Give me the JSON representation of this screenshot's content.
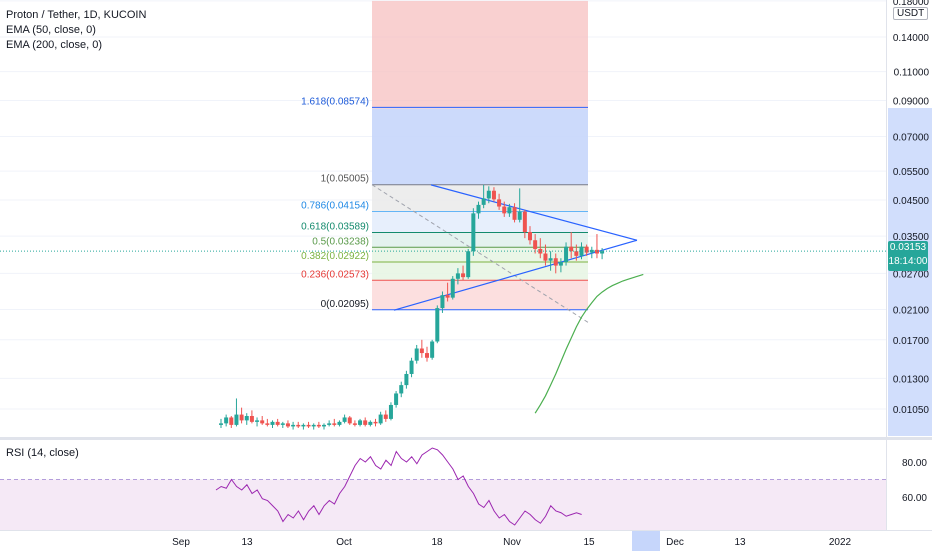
{
  "legend": {
    "title": "Proton / Tether, 1D, KUCOIN",
    "ema50": "EMA (50, close, 0)",
    "ema200": "EMA (200, close, 0)",
    "rsi": "RSI (14, close)"
  },
  "currency_badge": "USDT",
  "last_price": {
    "value": "0.03153",
    "countdown": "18:14:00"
  },
  "colors": {
    "up": "#26a69a",
    "down": "#ef5350",
    "triangle": "#2962ff",
    "ema": "#4caf50",
    "rsi": "#9c27b0",
    "risk_zone": "#f7c0c0",
    "target_zone": "#c6d6fb"
  },
  "chart_data": [
    {
      "type": "candlestick",
      "title": "Proton / Tether, 1D, KUCOIN",
      "x_ticks": [
        "Sep",
        "13",
        "Oct",
        "18",
        "Nov",
        "15",
        "Dec",
        "13",
        "2022"
      ],
      "y_ticks": [
        0.18,
        0.14,
        0.11,
        0.09,
        0.07,
        0.055,
        0.045,
        0.035,
        0.027,
        0.021,
        0.017,
        0.013,
        0.0105
      ],
      "y_tick_labels": [
        "0.18000",
        "0.14000",
        "0.11000",
        "0.09000",
        "0.07000",
        "0.05500",
        "0.04500",
        "0.03500",
        "0.02700",
        "0.02100",
        "0.01700",
        "0.01300",
        "0.01050"
      ],
      "y_scale": "log",
      "ohlc": [
        [
          0.0094,
          0.0098,
          0.0092,
          0.0095
        ],
        [
          0.0095,
          0.0101,
          0.0093,
          0.0099
        ],
        [
          0.0099,
          0.01,
          0.0092,
          0.0094
        ],
        [
          0.0094,
          0.0113,
          0.0093,
          0.0101
        ],
        [
          0.0101,
          0.0106,
          0.0095,
          0.0097
        ],
        [
          0.0097,
          0.0102,
          0.0094,
          0.01
        ],
        [
          0.01,
          0.0104,
          0.0095,
          0.0096
        ],
        [
          0.0096,
          0.0099,
          0.0093,
          0.0097
        ],
        [
          0.0097,
          0.01,
          0.0094,
          0.0095
        ],
        [
          0.0095,
          0.0098,
          0.0093,
          0.0094
        ],
        [
          0.0094,
          0.0097,
          0.0092,
          0.0096
        ],
        [
          0.0096,
          0.0098,
          0.0093,
          0.0094
        ],
        [
          0.0094,
          0.0096,
          0.0092,
          0.0095
        ],
        [
          0.0095,
          0.0097,
          0.0092,
          0.0093
        ],
        [
          0.0093,
          0.0096,
          0.0091,
          0.0094
        ],
        [
          0.0094,
          0.0096,
          0.0092,
          0.0093
        ],
        [
          0.0093,
          0.0095,
          0.0091,
          0.0094
        ],
        [
          0.0094,
          0.0096,
          0.0092,
          0.0093
        ],
        [
          0.0093,
          0.0095,
          0.0091,
          0.0094
        ],
        [
          0.0094,
          0.0096,
          0.0092,
          0.0093
        ],
        [
          0.0093,
          0.0095,
          0.0091,
          0.0094
        ],
        [
          0.0094,
          0.0097,
          0.0093,
          0.0095
        ],
        [
          0.0095,
          0.0098,
          0.0093,
          0.0094
        ],
        [
          0.0094,
          0.0097,
          0.0093,
          0.0096
        ],
        [
          0.0096,
          0.0101,
          0.0095,
          0.0099
        ],
        [
          0.0099,
          0.01,
          0.0094,
          0.0095
        ],
        [
          0.0095,
          0.0097,
          0.0093,
          0.0094
        ],
        [
          0.0094,
          0.0098,
          0.0093,
          0.0097
        ],
        [
          0.0097,
          0.0099,
          0.0093,
          0.0094
        ],
        [
          0.0094,
          0.0097,
          0.0093,
          0.0096
        ],
        [
          0.0096,
          0.0098,
          0.0093,
          0.0095
        ],
        [
          0.0095,
          0.0103,
          0.0094,
          0.0101
        ],
        [
          0.0101,
          0.0104,
          0.0096,
          0.0098
        ],
        [
          0.0098,
          0.011,
          0.0097,
          0.0108
        ],
        [
          0.0108,
          0.0119,
          0.0106,
          0.0117
        ],
        [
          0.0117,
          0.0127,
          0.0114,
          0.0124
        ],
        [
          0.0124,
          0.0137,
          0.0121,
          0.0134
        ],
        [
          0.0134,
          0.015,
          0.0131,
          0.0147
        ],
        [
          0.0147,
          0.0164,
          0.0144,
          0.016
        ],
        [
          0.016,
          0.017,
          0.015,
          0.0155
        ],
        [
          0.0155,
          0.0162,
          0.0146,
          0.015
        ],
        [
          0.015,
          0.017,
          0.0148,
          0.0168
        ],
        [
          0.0168,
          0.0216,
          0.0166,
          0.0212
        ],
        [
          0.0212,
          0.0238,
          0.0205,
          0.0232
        ],
        [
          0.0232,
          0.0253,
          0.0222,
          0.0228
        ],
        [
          0.0228,
          0.0265,
          0.0225,
          0.026
        ],
        [
          0.026,
          0.028,
          0.025,
          0.027
        ],
        [
          0.027,
          0.0285,
          0.0258,
          0.0263
        ],
        [
          0.0263,
          0.032,
          0.026,
          0.0315
        ],
        [
          0.0315,
          0.0425,
          0.0305,
          0.041
        ],
        [
          0.041,
          0.0445,
          0.0395,
          0.0435
        ],
        [
          0.0435,
          0.05,
          0.0425,
          0.0455
        ],
        [
          0.0455,
          0.0495,
          0.044,
          0.048
        ],
        [
          0.048,
          0.0492,
          0.0445,
          0.0452
        ],
        [
          0.0452,
          0.047,
          0.042,
          0.043
        ],
        [
          0.043,
          0.0445,
          0.04,
          0.041
        ],
        [
          0.041,
          0.0438,
          0.04,
          0.0428
        ],
        [
          0.0428,
          0.044,
          0.0385,
          0.0392
        ],
        [
          0.0392,
          0.0488,
          0.0385,
          0.0415
        ],
        [
          0.0415,
          0.042,
          0.0345,
          0.036
        ],
        [
          0.036,
          0.0375,
          0.033,
          0.034
        ],
        [
          0.034,
          0.0355,
          0.031,
          0.032
        ],
        [
          0.032,
          0.0345,
          0.03,
          0.031
        ],
        [
          0.031,
          0.033,
          0.0285,
          0.0295
        ],
        [
          0.0295,
          0.0315,
          0.0275,
          0.03
        ],
        [
          0.03,
          0.031,
          0.027,
          0.0285
        ],
        [
          0.0285,
          0.03,
          0.0272,
          0.0292
        ],
        [
          0.0292,
          0.0335,
          0.0285,
          0.0325
        ],
        [
          0.0325,
          0.036,
          0.03,
          0.0315
        ],
        [
          0.0315,
          0.033,
          0.0295,
          0.0305
        ],
        [
          0.0305,
          0.0335,
          0.0298,
          0.0325
        ],
        [
          0.0325,
          0.033,
          0.0305,
          0.0312
        ],
        [
          0.0312,
          0.0325,
          0.03,
          0.0318
        ],
        [
          0.0318,
          0.0355,
          0.03,
          0.031
        ],
        [
          0.031,
          0.0322,
          0.0298,
          0.0315
        ]
      ],
      "ema_50": [
        [
          0.0102,
          61
        ],
        [
          0.0108,
          62
        ],
        [
          0.0115,
          63
        ],
        [
          0.0124,
          64
        ],
        [
          0.0134,
          65
        ],
        [
          0.0146,
          66
        ],
        [
          0.0159,
          67
        ],
        [
          0.0172,
          68
        ],
        [
          0.0186,
          69
        ],
        [
          0.0199,
          70
        ],
        [
          0.021,
          71
        ],
        [
          0.022,
          72
        ],
        [
          0.023,
          73
        ],
        [
          0.0237,
          74
        ],
        [
          0.0243,
          75
        ],
        [
          0.0248,
          76
        ],
        [
          0.0252,
          77
        ],
        [
          0.0256,
          78
        ],
        [
          0.0259,
          79
        ],
        [
          0.0262,
          80
        ],
        [
          0.0265,
          81
        ],
        [
          0.0268,
          82
        ]
      ],
      "fibonacci": [
        {
          "label": "0(0.02095)",
          "level": 0,
          "price": 0.02095
        },
        {
          "label": "0.236(0.02573)",
          "level": 0.236,
          "price": 0.02573
        },
        {
          "label": "0.382(0.02922)",
          "level": 0.382,
          "price": 0.02922
        },
        {
          "label": "0.5(0.03238)",
          "level": 0.5,
          "price": 0.03238
        },
        {
          "label": "0.618(0.03589)",
          "level": 0.618,
          "price": 0.03589
        },
        {
          "label": "0.786(0.04154)",
          "level": 0.786,
          "price": 0.04154
        },
        {
          "label": "1(0.05005)",
          "level": 1,
          "price": 0.05005
        },
        {
          "label": "1.618(0.08574)",
          "level": 1.618,
          "price": 0.08574
        }
      ],
      "triangle": {
        "upper": [
          0.05,
          0.034
        ],
        "lower": [
          0.0209,
          0.034
        ]
      },
      "risk_zone_top": 0.18,
      "target_zone": [
        0.085,
        0.05
      ]
    },
    {
      "type": "line",
      "title": "RSI (14, close)",
      "y_ticks": [
        80.0,
        60.0
      ],
      "y_tick_labels": [
        "80.00",
        "60.00"
      ],
      "band": [
        70,
        30
      ],
      "values": [
        64,
        66,
        65,
        70,
        66,
        64,
        67,
        62,
        64,
        59,
        58,
        55,
        52,
        46,
        50,
        48,
        52,
        47,
        52,
        55,
        50,
        55,
        58,
        56,
        62,
        66,
        72,
        78,
        82,
        80,
        83,
        78,
        76,
        81,
        78,
        86,
        82,
        80,
        83,
        79,
        84,
        86,
        88,
        87,
        84,
        80,
        76,
        70,
        72,
        66,
        62,
        56,
        54,
        58,
        52,
        48,
        50,
        46,
        44,
        48,
        52,
        50,
        47,
        45,
        49,
        55,
        52,
        51,
        49,
        50,
        51,
        50
      ]
    }
  ],
  "time_axis": {
    "highlight_label": ""
  }
}
